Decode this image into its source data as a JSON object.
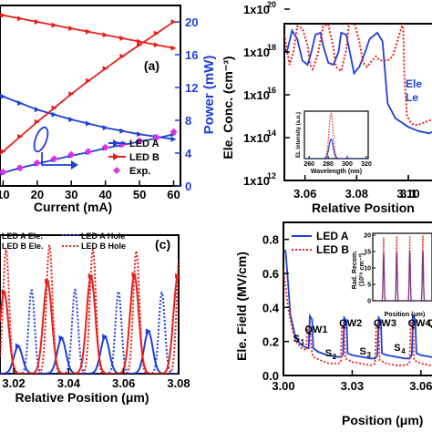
{
  "colors": {
    "blue": "#1f3fd8",
    "red": "#e8201c",
    "magenta": "#e52ee5",
    "axis": "#000000"
  },
  "panel_a": {
    "label": "(a)",
    "xlabel": "Current (mA)",
    "y2label": "Power (mW)",
    "x_ticks": [
      "10",
      "20",
      "30",
      "40",
      "50",
      "60"
    ],
    "y2_ticks": [
      "0",
      "4",
      "8",
      "12",
      "16",
      "20"
    ],
    "legend": [
      "LED A",
      "LED B",
      "Exp."
    ]
  },
  "panel_b": {
    "ylabel": "Ele. Conc. (cm⁻³)",
    "xlabel": "Relative Position",
    "y_ticks": [
      "1x10",
      "1x10",
      "1x10",
      "1x10",
      "1x10"
    ],
    "y_exps": [
      "20",
      "18",
      "16",
      "14",
      "12"
    ],
    "x_ticks": [
      "3.06",
      "3.08",
      "3.10",
      "3.1"
    ],
    "legend_cut": [
      "Ele",
      "Le"
    ],
    "inset": {
      "ylabel": "EL intensity (a.u.)",
      "xlabel": "Wavelength (nm)",
      "x_ticks": [
        "260",
        "280",
        "300",
        "320"
      ]
    }
  },
  "panel_c": {
    "label": "(c)",
    "xlabel": "Relative Position (μm)",
    "x_ticks": [
      "3.02",
      "3.04",
      "3.06",
      "3.08"
    ],
    "legend": [
      "LED A Ele.",
      "LED A Hole",
      "LED B Ele.",
      "LED B Hole"
    ]
  },
  "panel_d": {
    "ylabel": "Ele. Field (MV/cm)",
    "xlabel": "Position (μm)",
    "y_ticks": [
      "0.0",
      "0.2",
      "0.4",
      "0.6",
      "0.8"
    ],
    "x_ticks": [
      "3.00",
      "3.03",
      "3.06"
    ],
    "legend": [
      "LED A",
      "LED B"
    ],
    "annotations": [
      "QW1",
      "QW2",
      "QW3",
      "QW4",
      "QW"
    ],
    "s_labels": [
      "S",
      "S",
      "S",
      "S",
      "S"
    ],
    "s_subs": [
      "1",
      "2",
      "3",
      "4",
      ""
    ],
    "inset": {
      "ylabel": "Rad. Recom.",
      "ylabel2": "(10²⁸ cm⁻³)",
      "xlabel": "Position (μm)",
      "y_ticks": [
        "0",
        "5",
        "10",
        "15",
        "20"
      ]
    }
  },
  "chart_data": [
    {
      "panel": "a",
      "type": "line",
      "xlabel": "Current (mA)",
      "y2label": "Power (mW)",
      "xlim": [
        0,
        62
      ],
      "y2lim": [
        0,
        22
      ],
      "series": [
        {
          "name": "LED A",
          "axis": "efficiency",
          "x": [
            0,
            5,
            10,
            15,
            20,
            25,
            30,
            35,
            40,
            45,
            50,
            55,
            60
          ],
          "y": [
            12.2,
            11.6,
            10.9,
            10.1,
            9.3,
            8.7,
            8.1,
            7.6,
            7.1,
            6.7,
            6.3,
            6.0,
            5.7
          ]
        },
        {
          "name": "LED B",
          "axis": "efficiency",
          "x": [
            0,
            5,
            10,
            15,
            20,
            25,
            30,
            35,
            40,
            45,
            50,
            55,
            60
          ],
          "y": [
            21.5,
            21.2,
            20.8,
            20.4,
            20.0,
            19.6,
            19.2,
            18.8,
            18.4,
            18.0,
            17.6,
            17.2,
            16.8
          ]
        },
        {
          "name": "LED B",
          "axis": "power",
          "x": [
            0,
            5,
            10,
            15,
            20,
            25,
            30,
            35,
            40,
            45,
            50,
            55,
            60
          ],
          "y": [
            0.5,
            2.3,
            4.2,
            6.0,
            7.8,
            9.5,
            11.2,
            12.8,
            14.3,
            15.8,
            17.2,
            18.6,
            20.0
          ]
        },
        {
          "name": "LED A",
          "axis": "power",
          "x": [
            0,
            5,
            10,
            15,
            20,
            25,
            30,
            35,
            40,
            45,
            50,
            55,
            60
          ],
          "y": [
            0.3,
            1.0,
            1.6,
            2.2,
            2.7,
            3.2,
            3.7,
            4.1,
            4.6,
            5.0,
            5.4,
            5.8,
            6.3
          ]
        },
        {
          "name": "Exp.",
          "axis": "power",
          "x": [
            0,
            5,
            10,
            15,
            20,
            25,
            30,
            35,
            40,
            45,
            50,
            55,
            60
          ],
          "y": [
            0.3,
            1.0,
            1.7,
            2.2,
            2.8,
            3.3,
            3.8,
            4.2,
            4.7,
            5.1,
            5.5,
            5.9,
            6.6
          ]
        }
      ]
    },
    {
      "panel": "b",
      "type": "line",
      "ylog": true,
      "xlim": [
        3.052,
        3.112
      ],
      "ylim_exp": [
        12,
        20
      ],
      "series": [
        {
          "name": "LED A",
          "x": [
            3.052,
            3.053,
            3.055,
            3.057,
            3.059,
            3.061,
            3.0625,
            3.064,
            3.066,
            3.067,
            3.069,
            3.071,
            3.073,
            3.074,
            3.076,
            3.078,
            3.079,
            3.081,
            3.083,
            3.085,
            3.087,
            3.088,
            3.09,
            3.0905,
            3.092,
            3.095,
            3.1,
            3.104,
            3.108,
            3.112
          ],
          "y": [
            18.2,
            18.0,
            19.0,
            18.6,
            17.6,
            17.4,
            18.0,
            18.8,
            18.9,
            18.3,
            17.5,
            17.4,
            18.0,
            18.9,
            18.8,
            17.6,
            17.0,
            17.3,
            17.9,
            18.6,
            18.8,
            18.9,
            18.5,
            17.8,
            15.6,
            14.9,
            14.5,
            14.3,
            14.2,
            14.4
          ]
        },
        {
          "name": "LED B",
          "x": [
            3.052,
            3.054,
            3.0555,
            3.057,
            3.059,
            3.061,
            3.062,
            3.063,
            3.065,
            3.067,
            3.069,
            3.071,
            3.072,
            3.074,
            3.076,
            3.077,
            3.079,
            3.081,
            3.0825,
            3.084,
            3.086,
            3.0875,
            3.089,
            3.0905,
            3.092,
            3.094,
            3.096,
            3.098,
            3.0985,
            3.0995,
            3.1,
            3.101,
            3.102,
            3.104,
            3.106,
            3.108,
            3.112
          ],
          "y": [
            18.8,
            17.4,
            18.0,
            19.2,
            19.1,
            18.3,
            17.4,
            17.2,
            17.9,
            19.2,
            19.3,
            18.2,
            17.3,
            17.1,
            18.1,
            19.3,
            19.4,
            18.5,
            17.5,
            17.3,
            17.6,
            17.8,
            17.6,
            17.6,
            17.6,
            17.8,
            18.6,
            19.4,
            16.8,
            15.0,
            14.9,
            14.7,
            14.6,
            14.6,
            14.7,
            14.8,
            14.9
          ]
        }
      ],
      "inset": {
        "xlim": [
          255,
          322
        ],
        "series": [
          {
            "name": "LED B",
            "peak": 283,
            "height": 1.0
          },
          {
            "name": "LED A",
            "peak": 283,
            "height": 0.43
          }
        ]
      }
    },
    {
      "panel": "c",
      "type": "line",
      "xlim": [
        3.015,
        3.08
      ],
      "series": [
        {
          "name": "LED A Ele.",
          "style": "solid",
          "color": "blue",
          "peaks": [
            3.0216,
            3.0374,
            3.0532,
            3.069
          ],
          "height": [
            0.2,
            0.26,
            0.27,
            0.31
          ]
        },
        {
          "name": "LED A Hole",
          "style": "dotted",
          "color": "blue",
          "peaks": [
            3.0265,
            3.0423,
            3.0581,
            3.0739
          ],
          "height": [
            0.62,
            0.62,
            0.61,
            0.6
          ]
        },
        {
          "name": "LED B Ele.",
          "style": "solid",
          "color": "red",
          "peaks": [
            3.0165,
            3.0323,
            3.0481,
            3.0639,
            3.0797
          ],
          "height": [
            0.6,
            0.68,
            0.72,
            0.73,
            0.72
          ]
        },
        {
          "name": "LED B Hole",
          "style": "dotted",
          "color": "red",
          "peaks": [
            3.0172,
            3.033,
            3.0488,
            3.0646,
            3.0804
          ],
          "height": [
            0.92,
            0.95,
            0.92,
            0.91,
            0.9
          ]
        }
      ]
    },
    {
      "panel": "d",
      "type": "line",
      "xlim": [
        3.0,
        3.068
      ],
      "ylim": [
        0,
        0.9
      ],
      "series": [
        {
          "name": "LED A",
          "color": "blue",
          "x": [
            3.0,
            3.001,
            3.002,
            3.003,
            3.005,
            3.007,
            3.009,
            3.011,
            3.0115,
            3.0125,
            3.013,
            3.015,
            3.019,
            3.023,
            3.025,
            3.026,
            3.0265,
            3.0275,
            3.028,
            3.03,
            3.034,
            3.038,
            3.04,
            3.041,
            3.0415,
            3.0425,
            3.043,
            3.045,
            3.049,
            3.053,
            3.055,
            3.056,
            3.0565,
            3.0575,
            3.058,
            3.06,
            3.064,
            3.068
          ],
          "y": [
            0.82,
            0.72,
            0.55,
            0.36,
            0.24,
            0.19,
            0.17,
            0.16,
            0.35,
            0.33,
            0.16,
            0.14,
            0.12,
            0.11,
            0.11,
            0.12,
            0.34,
            0.32,
            0.13,
            0.12,
            0.11,
            0.1,
            0.1,
            0.12,
            0.34,
            0.32,
            0.13,
            0.12,
            0.11,
            0.1,
            0.1,
            0.12,
            0.35,
            0.33,
            0.13,
            0.12,
            0.11,
            0.1
          ]
        },
        {
          "name": "LED B",
          "color": "red",
          "x": [
            3.0,
            3.001,
            3.002,
            3.004,
            3.006,
            3.008,
            3.01,
            3.0105,
            3.0112,
            3.0125,
            3.013,
            3.016,
            3.02,
            3.024,
            3.025,
            3.0255,
            3.0265,
            3.027,
            3.03,
            3.034,
            3.038,
            3.04,
            3.0405,
            3.0415,
            3.042,
            3.045,
            3.049,
            3.053,
            3.055,
            3.0555,
            3.0565,
            3.057,
            3.06,
            3.064,
            3.068
          ],
          "y": [
            0.62,
            0.52,
            0.4,
            0.26,
            0.19,
            0.16,
            0.15,
            0.3,
            0.29,
            0.13,
            0.11,
            0.09,
            0.07,
            0.07,
            0.08,
            0.29,
            0.28,
            0.1,
            0.08,
            0.07,
            0.06,
            0.07,
            0.3,
            0.29,
            0.09,
            0.07,
            0.06,
            0.06,
            0.07,
            0.31,
            0.3,
            0.09,
            0.07,
            0.06,
            0.06
          ]
        }
      ],
      "inset": {
        "xlim": [
          3.0,
          3.068
        ],
        "ylim": [
          0,
          20
        ],
        "series": [
          {
            "name": "LED A",
            "color": "blue",
            "peaks": [
              3.0125,
              3.0275,
              3.0425,
              3.0575
            ],
            "height": [
              14.5,
              14.8,
              15.0,
              15.2
            ]
          },
          {
            "name": "LED B",
            "color": "red",
            "peaks": [
              3.0125,
              3.0275,
              3.0425,
              3.0575
            ],
            "height": [
              19.5,
              19.8,
              19.8,
              20.0
            ]
          }
        ]
      }
    }
  ]
}
